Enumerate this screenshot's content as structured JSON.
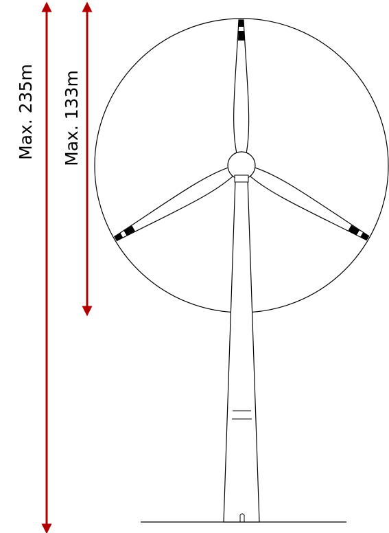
{
  "labels": {
    "total_height": "Max. 235m",
    "hub_height": "Max. 133m"
  }
}
